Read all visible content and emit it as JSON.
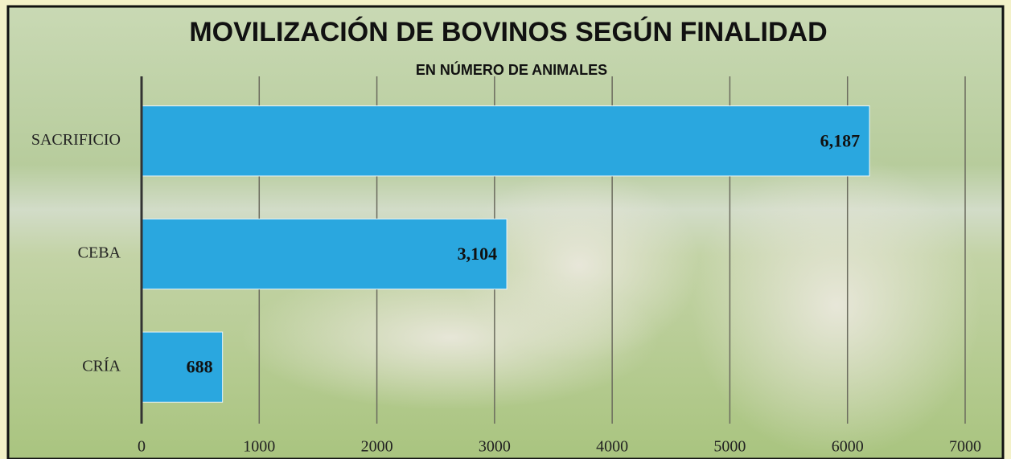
{
  "chart_data": {
    "type": "bar",
    "orientation": "horizontal",
    "title": "MOVILIZACIÓN DE BOVINOS SEGÚN FINALIDAD",
    "subtitle": "EN NÚMERO DE ANIMALES",
    "categories": [
      "SACRIFICIO",
      "CEBA",
      "CRÍA"
    ],
    "values": [
      6187,
      3104,
      688
    ],
    "value_labels": [
      "6,187",
      "3,104",
      "688"
    ],
    "color": "#2aa7df",
    "xlim": [
      0,
      7000
    ],
    "xticks": [
      0,
      1000,
      2000,
      3000,
      4000,
      5000,
      6000,
      7000
    ],
    "grid": true
  }
}
